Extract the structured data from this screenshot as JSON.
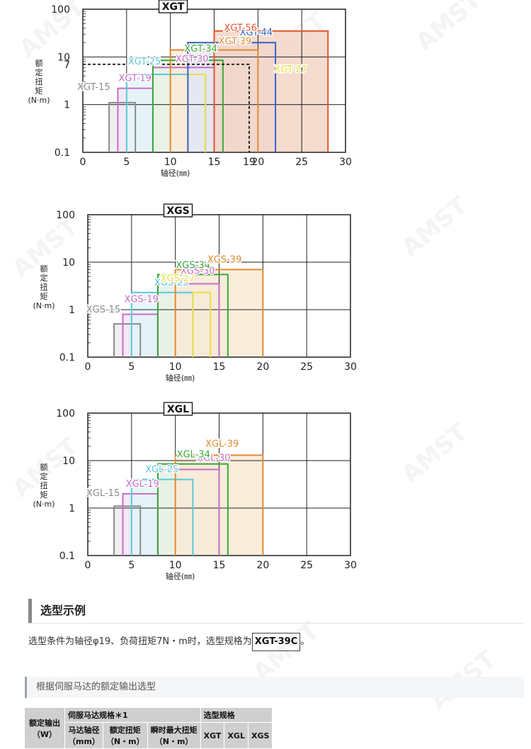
{
  "watermark": "AMST",
  "chart_data": [
    {
      "type": "bar",
      "title": "XGT",
      "xlabel": "轴径(㎜)",
      "ylabel_lines": [
        "额",
        "定",
        "扭",
        "矩",
        "(N·m)"
      ],
      "x_ticks": [
        "0",
        "5",
        "10",
        "15",
        "19",
        "20",
        "25",
        "30"
      ],
      "y_ticks": [
        "100",
        "10",
        "7",
        "1",
        "0.1"
      ],
      "xlim": [
        0,
        30
      ],
      "ylim": [
        0.1,
        100
      ],
      "y_scale": "log",
      "grid": true,
      "selection_guide": {
        "x": 19,
        "y": 7
      },
      "series": [
        {
          "name": "XGT-15",
          "x_from": 3,
          "x_to": 6,
          "y": 1.1,
          "color": "#8a8a8a",
          "fill": "#ececec"
        },
        {
          "name": "XGT-19",
          "x_from": 4,
          "x_to": 8,
          "y": 2.2,
          "color": "#c86bc8",
          "fill": "#f4e6f4"
        },
        {
          "name": "XGT-25",
          "x_from": 5,
          "x_to": 14,
          "y": 4.3,
          "color": "#5bc8d8",
          "fill": "#e2f5f8"
        },
        {
          "name": "XGT-27",
          "x_from": 12,
          "x_to": 14,
          "y": 4.3,
          "color": "#e8e040",
          "fill": "#fbfad8"
        },
        {
          "name": "XGT-30",
          "x_from": 8,
          "x_to": 15,
          "y": 6.0,
          "color": "#c86bc8",
          "fill": "#f4e6f4"
        },
        {
          "name": "XGT-34",
          "x_from": 8,
          "x_to": 16,
          "y": 8.5,
          "color": "#3aa83a",
          "fill": "#e5f3e3"
        },
        {
          "name": "XGT-39",
          "x_from": 10,
          "x_to": 20,
          "y": 14,
          "color": "#e08a30",
          "fill": "#f9ead6"
        },
        {
          "name": "XGT-44",
          "x_from": 12,
          "x_to": 22,
          "y": 20,
          "color": "#3a64c0",
          "fill": "#e2e8f6"
        },
        {
          "name": "XGT-56",
          "x_from": 15,
          "x_to": 28,
          "y": 35,
          "color": "#e05530",
          "fill": "#f3d3c6"
        }
      ]
    },
    {
      "type": "bar",
      "title": "XGS",
      "xlabel": "轴径(㎜)",
      "ylabel_lines": [
        "额",
        "定",
        "扭",
        "矩",
        "(N·m)"
      ],
      "x_ticks": [
        "0",
        "5",
        "10",
        "15",
        "20",
        "25",
        "30"
      ],
      "y_ticks": [
        "100",
        "10",
        "1",
        "0.1"
      ],
      "xlim": [
        0,
        30
      ],
      "ylim": [
        0.1,
        100
      ],
      "y_scale": "log",
      "grid": true,
      "series": [
        {
          "name": "XGS-15",
          "x_from": 3,
          "x_to": 6,
          "y": 0.5,
          "color": "#8a8a8a",
          "fill": "#ececec"
        },
        {
          "name": "XGS-19",
          "x_from": 4,
          "x_to": 8,
          "y": 0.8,
          "color": "#c86bc8",
          "fill": "#f4e6f4"
        },
        {
          "name": "XGS-25",
          "x_from": 5,
          "x_to": 12,
          "y": 2.3,
          "color": "#5bc8d8",
          "fill": "#e2f5f8"
        },
        {
          "name": "XGS-27",
          "x_from": 12,
          "x_to": 14,
          "y": 2.3,
          "color": "#e8e040",
          "fill": "#fbfad8"
        },
        {
          "name": "XGS-30",
          "x_from": 8,
          "x_to": 15,
          "y": 3.5,
          "color": "#c86bc8",
          "fill": "#f4e6f4"
        },
        {
          "name": "XGS-34",
          "x_from": 8,
          "x_to": 16,
          "y": 5.5,
          "color": "#3aa83a",
          "fill": "#e5f3e3"
        },
        {
          "name": "XGS-39",
          "x_from": 10,
          "x_to": 20,
          "y": 7,
          "color": "#e08a30",
          "fill": "#f9ead6"
        }
      ]
    },
    {
      "type": "bar",
      "title": "XGL",
      "xlabel": "轴径(㎜)",
      "ylabel_lines": [
        "额",
        "定",
        "扭",
        "矩",
        "(N·m)"
      ],
      "x_ticks": [
        "0",
        "5",
        "10",
        "15",
        "20",
        "25",
        "30"
      ],
      "y_ticks": [
        "100",
        "10",
        "1",
        "0.1"
      ],
      "xlim": [
        0,
        30
      ],
      "ylim": [
        0.1,
        100
      ],
      "y_scale": "log",
      "grid": true,
      "series": [
        {
          "name": "XGL-15",
          "x_from": 3,
          "x_to": 6,
          "y": 1.1,
          "color": "#8a8a8a",
          "fill": "#ececec"
        },
        {
          "name": "XGL-19",
          "x_from": 4,
          "x_to": 8,
          "y": 2.0,
          "color": "#c86bc8",
          "fill": "#f4e6f4"
        },
        {
          "name": "XGL-25",
          "x_from": 5,
          "x_to": 12,
          "y": 4.0,
          "color": "#5bc8d8",
          "fill": "#e2f5f8"
        },
        {
          "name": "XGL-30",
          "x_from": 8,
          "x_to": 15,
          "y": 6.5,
          "color": "#c86bc8",
          "fill": "#f4e6f4"
        },
        {
          "name": "XGL-34",
          "x_from": 8,
          "x_to": 16,
          "y": 8.5,
          "color": "#3aa83a",
          "fill": "#e5f3e3"
        },
        {
          "name": "XGL-39",
          "x_from": 10,
          "x_to": 20,
          "y": 13,
          "color": "#e08a30",
          "fill": "#f9ead6"
        }
      ]
    }
  ],
  "selection_example": {
    "heading": "选型示例",
    "text_before": "选型条件为轴径φ19、负荷扭矩7N・m时，选型规格为",
    "code": "XGT-39C",
    "text_after": "。"
  },
  "servo_section": {
    "heading": "根据伺服马达的额定输出选型"
  },
  "table": {
    "col_rated_output": "额定输出\n（W）",
    "group_servo": "伺服马达规格＊1",
    "group_select": "选型规格",
    "col_shaft": "马达轴径\n（mm）",
    "col_torque": "额定扭矩\n（N・m）",
    "col_max_torque": "瞬时最大扭矩\n（N・m）",
    "col_xgt": "XGT",
    "col_xgl": "XGL",
    "col_xgs": "XGS"
  }
}
